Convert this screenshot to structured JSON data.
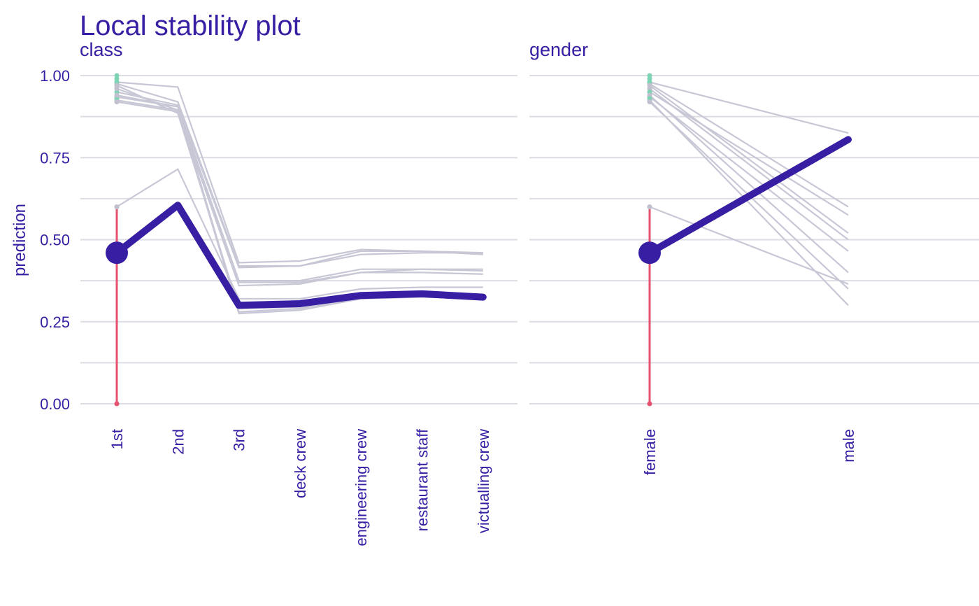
{
  "chart_data": {
    "type": "line",
    "title": "Local stability plot",
    "ylabel": "prediction",
    "ylim": [
      0,
      1
    ],
    "yticks": [
      "0.00",
      "0.25",
      "0.50",
      "0.75",
      "1.00"
    ],
    "colors": {
      "text": "#371ea3",
      "main": "#371ea3",
      "neighbor": "#c7c7d6",
      "grid": "#dddde4",
      "residual_negative": "#e3526f",
      "residual_positive": "#7dd3b3",
      "neighbor_point": "#c0c0ce"
    },
    "panels": [
      {
        "name": "class",
        "categories": [
          "1st",
          "2nd",
          "3rd",
          "deck crew",
          "engineering crew",
          "restaurant staff",
          "victualling crew"
        ],
        "observation": {
          "category": "1st",
          "value": 0.46,
          "profile": [
            0.46,
            0.605,
            0.3,
            0.305,
            0.33,
            0.335,
            0.325
          ]
        },
        "neighbors": [
          {
            "observed": 1.0,
            "profile": [
              0.98,
              0.965,
              0.43,
              0.435,
              0.47,
              0.465,
              0.46
            ]
          },
          {
            "observed": 0.99,
            "profile": [
              0.975,
              0.92,
              0.42,
              0.42,
              0.465,
              0.465,
              0.455
            ]
          },
          {
            "observed": 0.98,
            "profile": [
              0.95,
              0.91,
              0.415,
              0.42,
              0.455,
              0.46,
              0.46
            ]
          },
          {
            "observed": 0.95,
            "profile": [
              0.935,
              0.905,
              0.375,
              0.375,
              0.41,
              0.41,
              0.41
            ]
          },
          {
            "observed": 0.93,
            "profile": [
              0.925,
              0.895,
              0.37,
              0.37,
              0.4,
              0.41,
              0.405
            ]
          },
          {
            "observed": 0.92,
            "profile": [
              0.92,
              0.89,
              0.36,
              0.365,
              0.4,
              0.4,
              0.395
            ]
          },
          {
            "observed": 0.6,
            "profile": [
              0.6,
              0.715,
              0.32,
              0.32,
              0.35,
              0.355,
              0.355
            ]
          },
          {
            "observed": 0.97,
            "profile": [
              0.97,
              0.885,
              0.29,
              0.295,
              0.33,
              0.335,
              0.33
            ]
          },
          {
            "observed": 0.96,
            "profile": [
              0.96,
              0.895,
              0.275,
              0.285,
              0.32,
              0.325,
              0.32
            ]
          },
          {
            "observed": 0.94,
            "profile": [
              0.94,
              0.905,
              0.28,
              0.29,
              0.325,
              0.33,
              0.325
            ]
          }
        ]
      },
      {
        "name": "gender",
        "categories": [
          "female",
          "male"
        ],
        "observation": {
          "category": "female",
          "value": 0.46,
          "profile": [
            0.46,
            0.805
          ]
        },
        "neighbors": [
          {
            "observed": 1.0,
            "profile": [
              0.98,
              0.825
            ]
          },
          {
            "observed": 0.99,
            "profile": [
              0.975,
              0.6
            ]
          },
          {
            "observed": 0.98,
            "profile": [
              0.95,
              0.575
            ]
          },
          {
            "observed": 0.97,
            "profile": [
              0.97,
              0.52
            ]
          },
          {
            "observed": 0.96,
            "profile": [
              0.96,
              0.5
            ]
          },
          {
            "observed": 0.95,
            "profile": [
              0.935,
              0.465
            ]
          },
          {
            "observed": 0.94,
            "profile": [
              0.94,
              0.4
            ]
          },
          {
            "observed": 0.93,
            "profile": [
              0.925,
              0.3
            ]
          },
          {
            "observed": 0.92,
            "profile": [
              0.92,
              0.35
            ]
          },
          {
            "observed": 0.6,
            "profile": [
              0.6,
              0.365
            ]
          }
        ]
      }
    ]
  }
}
